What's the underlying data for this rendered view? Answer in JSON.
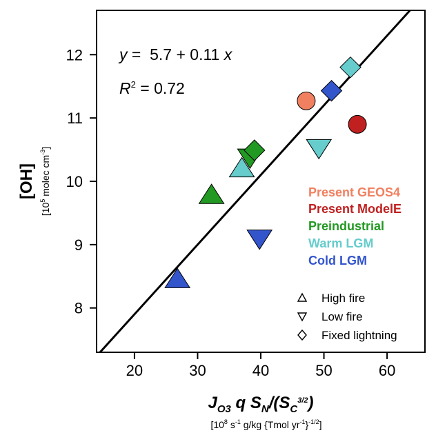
{
  "chart_data": {
    "type": "scatter",
    "xlim": [
      14,
      66
    ],
    "ylim": [
      7.3,
      12.7
    ],
    "x_ticks": [
      20,
      30,
      40,
      50,
      60
    ],
    "y_ticks": [
      8,
      9,
      10,
      11,
      12
    ],
    "xlabel": {
      "main": "J",
      "main_sub": "O3",
      "main_mid": " q S",
      "main_sub2": "N",
      "main_mid2": "/(S",
      "main_sub3": "C",
      "main_sup3": "3/2",
      "main_end": ")",
      "units_pre": "[10",
      "units_sup1": "8",
      "units_mid": " s",
      "units_sup2": "-1",
      "units_mid2": " g/kg {Tmol yr",
      "units_sup3": "-1",
      "units_mid3": "}",
      "units_sup4": "-1/2",
      "units_end": "]"
    },
    "ylabel": {
      "main": "[OH]",
      "units_pre": "[10",
      "units_sup1": "5",
      "units_mid": " molec cm",
      "units_sup2": "-3",
      "units_end": "]"
    },
    "regression": {
      "equation_y": "y",
      "equation_mid": " =  5.7 + 0.11 ",
      "equation_x": "x",
      "r2_r": "R",
      "r2_sup": "2",
      "r2_rest": " = 0.72",
      "intercept": 5.7,
      "slope": 0.11
    },
    "series": [
      {
        "name": "Present GEOS4",
        "color": "#f08060",
        "points": [
          {
            "x": 47.2,
            "y": 11.27,
            "marker": "circle"
          }
        ]
      },
      {
        "name": "Present ModelE",
        "color": "#c02020",
        "points": [
          {
            "x": 55.3,
            "y": 10.9,
            "marker": "circle"
          }
        ]
      },
      {
        "name": "Preindustrial",
        "color": "#229922",
        "points": [
          {
            "x": 32.2,
            "y": 9.78,
            "marker": "triangle-up"
          },
          {
            "x": 38.3,
            "y": 10.38,
            "marker": "triangle-down"
          },
          {
            "x": 39.0,
            "y": 10.49,
            "marker": "diamond"
          }
        ]
      },
      {
        "name": "Warm LGM",
        "color": "#66cccc",
        "points": [
          {
            "x": 37.0,
            "y": 10.2,
            "marker": "triangle-up"
          },
          {
            "x": 49.2,
            "y": 10.53,
            "marker": "triangle-down"
          },
          {
            "x": 54.2,
            "y": 11.8,
            "marker": "diamond"
          }
        ]
      },
      {
        "name": "Cold LGM",
        "color": "#3355cc",
        "points": [
          {
            "x": 26.8,
            "y": 8.45,
            "marker": "triangle-up"
          },
          {
            "x": 39.8,
            "y": 9.1,
            "marker": "triangle-down"
          },
          {
            "x": 51.2,
            "y": 11.43,
            "marker": "diamond"
          }
        ]
      }
    ],
    "shape_legend": [
      {
        "marker": "triangle-up",
        "label": "High fire"
      },
      {
        "marker": "triangle-down",
        "label": "Low fire"
      },
      {
        "marker": "diamond",
        "label": "Fixed lightning"
      }
    ],
    "grid": false,
    "legend_position": "right"
  }
}
